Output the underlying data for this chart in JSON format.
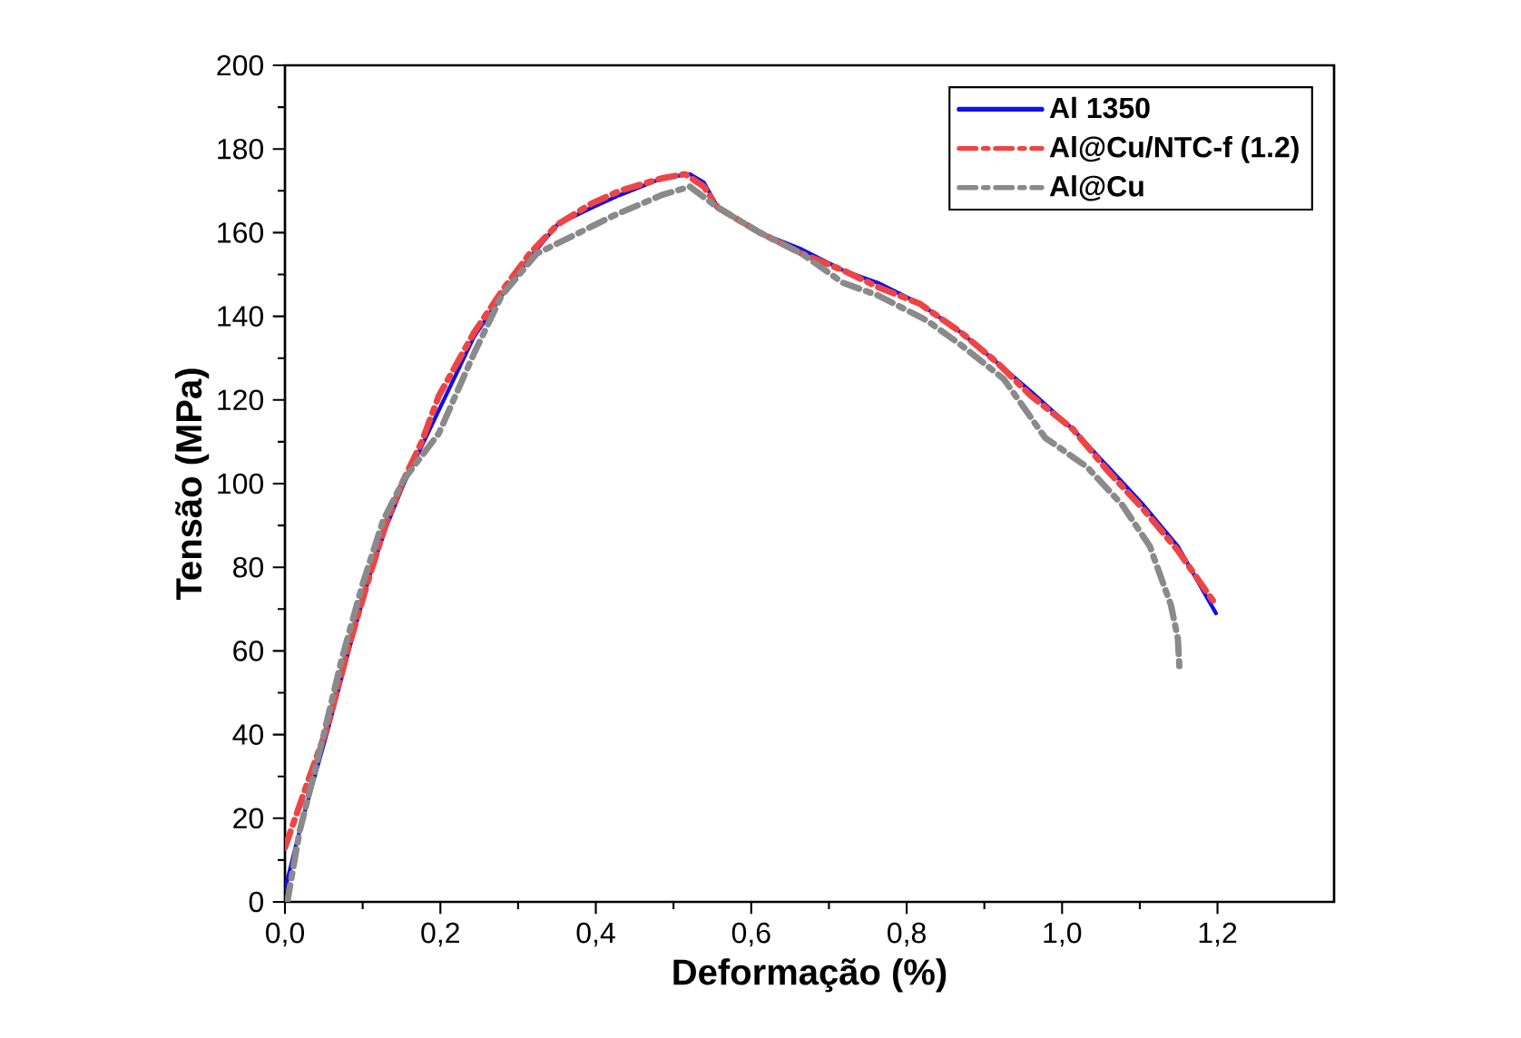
{
  "chart_data": {
    "type": "line",
    "xlabel": "Deformação (%)",
    "ylabel": "Tensão (MPa)",
    "xlim": [
      0,
      1.35
    ],
    "ylim": [
      0,
      200
    ],
    "xticks": [
      {
        "value": 0,
        "label": "0,0"
      },
      {
        "value": 0.2,
        "label": "0,2"
      },
      {
        "value": 0.4,
        "label": "0,4"
      },
      {
        "value": 0.6,
        "label": "0,6"
      },
      {
        "value": 0.8,
        "label": "0,8"
      },
      {
        "value": 1.0,
        "label": "1,0"
      },
      {
        "value": 1.2,
        "label": "1,2"
      }
    ],
    "yticks": [
      0,
      20,
      40,
      60,
      80,
      100,
      120,
      140,
      160,
      180,
      200
    ],
    "grid": false,
    "legend": "top right",
    "series": [
      {
        "name": "Al 1350",
        "color": "#1010e8",
        "line_style": "solid",
        "x": [
          0,
          0.023,
          0.055,
          0.082,
          0.109,
          0.131,
          0.153,
          0.176,
          0.207,
          0.243,
          0.279,
          0.315,
          0.351,
          0.395,
          0.431,
          0.485,
          0.521,
          0.539,
          0.557,
          0.611,
          0.665,
          0.718,
          0.763,
          0.817,
          0.871,
          0.916,
          0.96,
          1.014,
          1.059,
          1.104,
          1.149,
          1.198
        ],
        "values": [
          3,
          20,
          41,
          60,
          78,
          90,
          100,
          109,
          121,
          135,
          145,
          154,
          162,
          166,
          169,
          173,
          174,
          172,
          166,
          160,
          156,
          151,
          148,
          143,
          136,
          129,
          122,
          113,
          104,
          95,
          85,
          69
        ]
      },
      {
        "name": "Al@Cu/NTC-f (1.2)",
        "color": "#ee4444",
        "line_style": "dashed",
        "x": [
          0,
          0.028,
          0.055,
          0.082,
          0.109,
          0.131,
          0.153,
          0.176,
          0.198,
          0.243,
          0.279,
          0.315,
          0.351,
          0.395,
          0.431,
          0.485,
          0.515,
          0.539,
          0.557,
          0.611,
          0.665,
          0.718,
          0.763,
          0.817,
          0.871,
          0.916,
          0.96,
          1.014,
          1.059,
          1.104,
          1.149,
          1.198
        ],
        "values": [
          13,
          28,
          42,
          61,
          78,
          91,
          101,
          110,
          121,
          136,
          146,
          155,
          162,
          167,
          170,
          173,
          174,
          171,
          166,
          160,
          155,
          151,
          147,
          143,
          136,
          129,
          121,
          113,
          103,
          94,
          84,
          71
        ]
      },
      {
        "name": "Al@Cu",
        "color": "#8a8a8a",
        "line_style": "dashed",
        "x": [
          0.003,
          0.019,
          0.046,
          0.073,
          0.1,
          0.126,
          0.153,
          0.198,
          0.243,
          0.279,
          0.324,
          0.368,
          0.422,
          0.485,
          0.521,
          0.557,
          0.611,
          0.665,
          0.718,
          0.763,
          0.826,
          0.871,
          0.925,
          0.978,
          1.032,
          1.077,
          1.113,
          1.14,
          1.149,
          1.151
        ],
        "values": [
          0,
          17,
          37,
          58,
          76,
          91,
          101,
          112,
          131,
          145,
          155,
          159,
          164,
          169,
          171,
          166,
          160,
          155,
          148,
          145,
          139,
          133,
          125,
          111,
          104,
          95,
          85,
          71,
          63,
          56
        ]
      }
    ]
  }
}
